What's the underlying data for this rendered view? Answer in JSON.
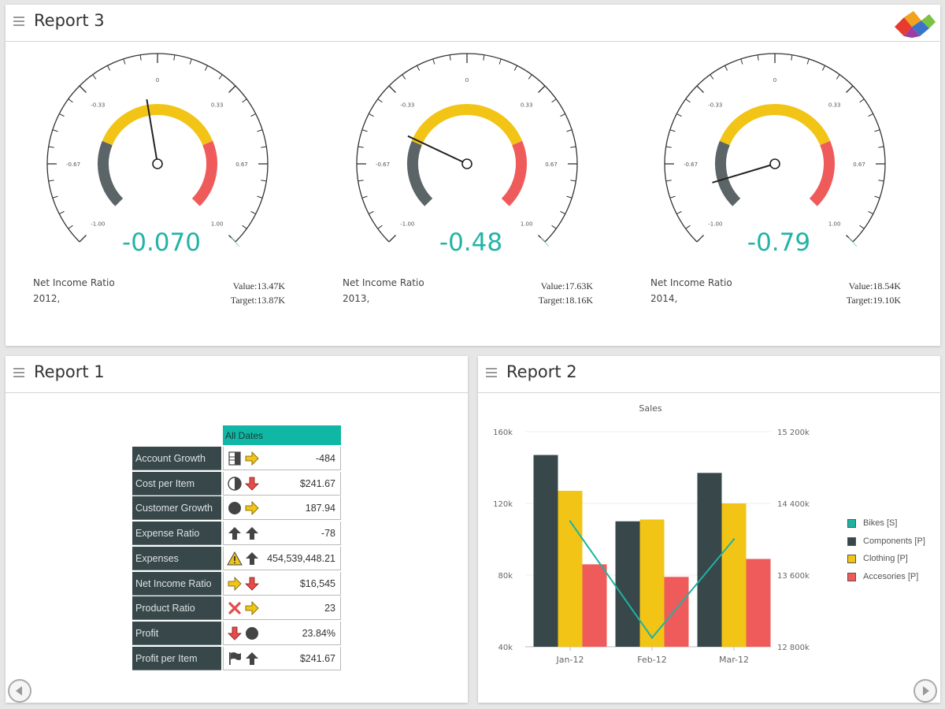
{
  "report3": {
    "title": "Report 3",
    "gauges": [
      {
        "value": -0.07,
        "display": "-0.070",
        "title": "Net Income Ratio",
        "year": "2012,",
        "value_label": "Value:13.47K",
        "target_label": "Target:13.87K"
      },
      {
        "value": -0.48,
        "display": "-0.48",
        "title": "Net Income Ratio",
        "year": "2013,",
        "value_label": "Value:17.63K",
        "target_label": "Target:18.16K"
      },
      {
        "value": -0.79,
        "display": "-0.79",
        "title": "Net Income Ratio",
        "year": "2014,",
        "value_label": "Value:18.54K",
        "target_label": "Target:19.10K"
      }
    ],
    "scale": {
      "min": -1.0,
      "max": 1.0,
      "tick_labels": [
        "-1.00",
        "-0.67",
        "-0.33",
        "0",
        "0.33",
        "0.67",
        "1.00"
      ]
    },
    "colors": {
      "low": "#5b6466",
      "mid": "#f2c416",
      "high": "#ef5b5b",
      "value": "#23b3a6"
    }
  },
  "report1": {
    "title": "Report 1",
    "column_header": "All Dates",
    "rows": [
      {
        "label": "Account Growth",
        "value": "-484",
        "icons": [
          "half-box-icon",
          "arrow-right-icon"
        ]
      },
      {
        "label": "Cost per Item",
        "value": "$241.67",
        "icons": [
          "half-circle-icon",
          "arrow-down-icon"
        ]
      },
      {
        "label": "Customer Growth",
        "value": "187.94",
        "icons": [
          "circle-icon",
          "arrow-right-icon"
        ]
      },
      {
        "label": "Expense Ratio",
        "value": "-78",
        "icons": [
          "arrow-up-icon",
          "arrow-up-icon"
        ]
      },
      {
        "label": "Expenses",
        "value": "454,539,448.21",
        "icons": [
          "warning-icon",
          "arrow-up-icon"
        ]
      },
      {
        "label": "Net Income Ratio",
        "value": "$16,545",
        "icons": [
          "arrow-right-icon",
          "arrow-down-icon"
        ]
      },
      {
        "label": "Product Ratio",
        "value": "23",
        "icons": [
          "x-icon",
          "arrow-right-icon"
        ]
      },
      {
        "label": "Profit",
        "value": "23.84%",
        "icons": [
          "arrow-down-icon",
          "circle-icon"
        ]
      },
      {
        "label": "Profit per Item",
        "value": "$241.67",
        "icons": [
          "flag-icon",
          "arrow-up-icon"
        ]
      }
    ]
  },
  "report2": {
    "title": "Report 2",
    "chart_data": {
      "type": "bar",
      "title": "Sales",
      "categories": [
        "Jan-12",
        "Feb-12",
        "Mar-12"
      ],
      "ylim": [
        40000,
        160000
      ],
      "y_ticks": [
        "40k",
        "80k",
        "120k",
        "160k"
      ],
      "y2lim": [
        12800,
        15200
      ],
      "y2_ticks": [
        "12 800k",
        "13 600k",
        "14 400k",
        "15 200k"
      ],
      "series": [
        {
          "name": "Components [P]",
          "type": "bar",
          "color": "#37474a",
          "values": [
            147000,
            110000,
            137000
          ]
        },
        {
          "name": "Clothing [P]",
          "type": "bar",
          "color": "#f2c416",
          "values": [
            127000,
            111000,
            120000
          ]
        },
        {
          "name": "Accesories [P]",
          "type": "bar",
          "color": "#ef5b5b",
          "values": [
            86000,
            79000,
            89000
          ]
        },
        {
          "name": "Bikes [S]",
          "type": "line",
          "axis": "secondary",
          "color": "#1fb2a3",
          "values": [
            14200,
            12900,
            14000
          ]
        }
      ],
      "legend": [
        "Bikes [S]",
        "Components [P]",
        "Clothing [P]",
        "Accesories [P]"
      ],
      "legend_position": "right"
    }
  }
}
